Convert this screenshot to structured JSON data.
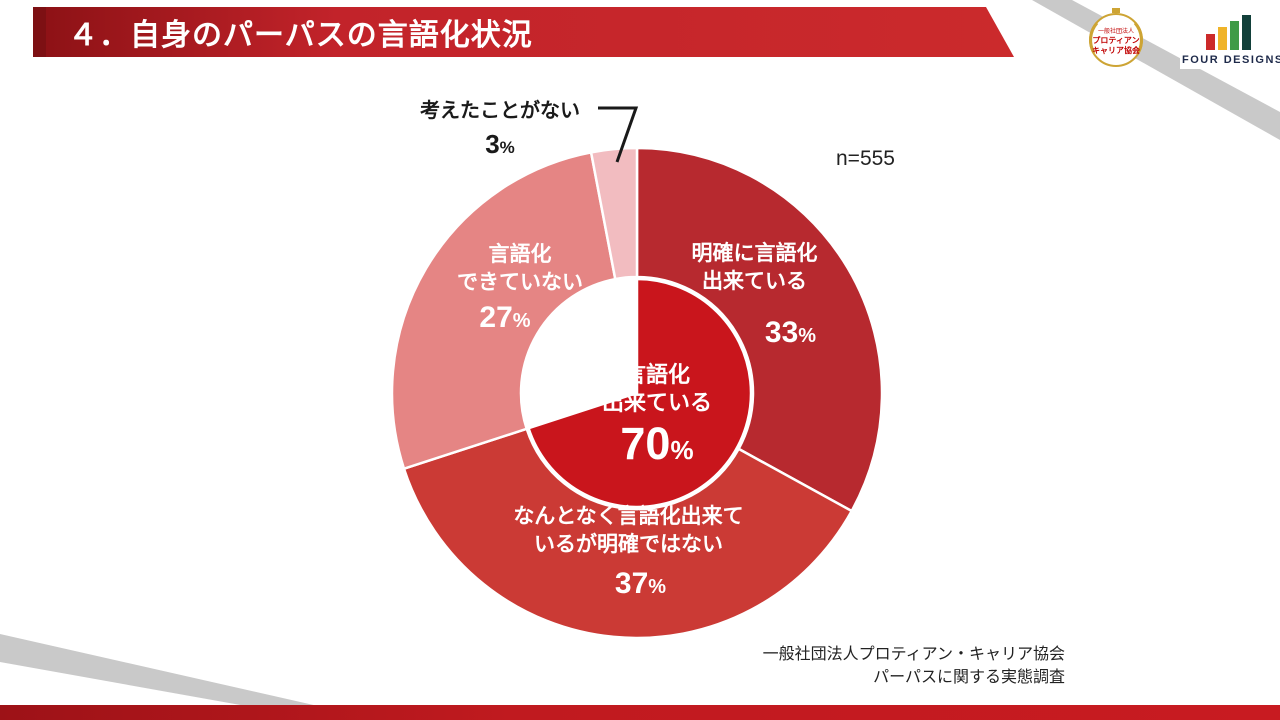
{
  "slide": {
    "title": "４．自身のパーパスの言語化状況",
    "n_label": "n=555",
    "source_line1": "一般社団法人プロティアン・キャリア協会",
    "source_line2": "パーパスに関する実態調査"
  },
  "logos": {
    "badge_line1": "一般社団法人",
    "badge_line2": "プロティアン",
    "badge_line3": "キャリア協会",
    "brand": "FOUR DESIGNS",
    "bar_colors": [
      "#cc2a2a",
      "#f0b429",
      "#3f9b47",
      "#12403a"
    ]
  },
  "colors": {
    "header_red_dark": "#8e1216",
    "header_red": "#c2232a",
    "header_accent": "#7d1013",
    "footer_red": "#c01a1f",
    "ribbon_gray": "#c9c9c9",
    "text_dark": "#1a1a1a",
    "badge_gold": "#cda434",
    "brand_navy": "#1e2a4a"
  },
  "chart_data": {
    "type": "pie",
    "style": "donut",
    "title": "自身のパーパスの言語化状況",
    "sample_size": 555,
    "unit": "%",
    "start_angle": "12-o'clock",
    "direction": "clockwise",
    "legend_position": "none",
    "segments": [
      {
        "label": "明確に言語化出来ている",
        "value": 33,
        "color": "#b7292f",
        "display_lines": [
          "明確に言語化",
          "出来ている"
        ]
      },
      {
        "label": "なんとなく言語化出来ているが明確ではない",
        "value": 37,
        "color": "#cb3a35",
        "display_lines": [
          "なんとなく言語化出来て",
          "いるが明確ではない"
        ]
      },
      {
        "label": "言語化できていない",
        "value": 27,
        "color": "#e58584",
        "display_lines": [
          "言語化",
          "できていない"
        ]
      },
      {
        "label": "考えたことがない",
        "value": 3,
        "color": "#f2bcc0",
        "display_lines": [
          "考えたことがない"
        ]
      }
    ],
    "center_total": {
      "label": "言語化出来ている",
      "value": 70,
      "color": "#c9151c",
      "display_lines": [
        "言語化",
        "出来ている"
      ]
    }
  }
}
